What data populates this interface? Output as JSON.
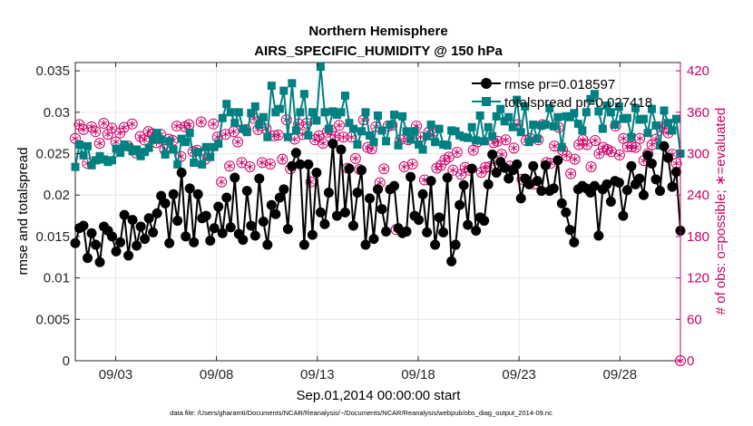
{
  "chart_data": {
    "type": "line",
    "title": "Northern Hemisphere",
    "subtitle": "AIRS_SPECIFIC_HUMIDITY @ 150 hPa",
    "xlabel": "Sep.01,2014 00:00:00 start",
    "ylabel": "rmse and totalspread",
    "y2label": "# of obs: o=possible; ∗=evaluated",
    "footnote": "data file: /Users/gharamti/Documents/NCAR/Reanalysis/~/Documents/NCAR/Reanalysis/webpub/obs_diag_output_2014-09.nc",
    "xlim": [
      1,
      31
    ],
    "ylim": [
      0,
      0.036
    ],
    "y2lim": [
      0,
      432
    ],
    "x_ticks": [
      3,
      8,
      13,
      18,
      23,
      28
    ],
    "x_tick_labels": [
      "09/03",
      "09/08",
      "09/13",
      "09/18",
      "09/23",
      "09/28"
    ],
    "y_ticks": [
      0,
      0.005,
      0.01,
      0.015,
      0.02,
      0.025,
      0.03,
      0.035
    ],
    "y_tick_labels": [
      "0",
      "0.005",
      "0.01",
      "0.015",
      "0.02",
      "0.025",
      "0.03",
      "0.035"
    ],
    "y2_ticks": [
      0,
      60,
      120,
      180,
      240,
      300,
      360,
      420
    ],
    "y2_tick_labels": [
      "0",
      "60",
      "120",
      "180",
      "240",
      "300",
      "360",
      "420"
    ],
    "grid": true,
    "legend_position": "top-right",
    "colors": {
      "rmse": "#000000",
      "totalspread": "#008080",
      "obs": "#cc0066",
      "axis": "#262626",
      "grid": "#e6e6e6"
    },
    "series": [
      {
        "name": "rmse",
        "legend": "rmse pr=0.018597",
        "marker": "circle",
        "values": [
          0.0142,
          0.016,
          0.0163,
          0.0124,
          0.0154,
          0.014,
          0.0119,
          0.0162,
          0.0157,
          0.015,
          0.0132,
          0.0143,
          0.0176,
          0.0127,
          0.017,
          0.0139,
          0.0162,
          0.0147,
          0.0172,
          0.0155,
          0.0178,
          0.0199,
          0.019,
          0.0142,
          0.0201,
          0.0169,
          0.0227,
          0.015,
          0.0208,
          0.0143,
          0.0201,
          0.0172,
          0.0175,
          0.0145,
          0.016,
          0.0186,
          0.0154,
          0.0197,
          0.0161,
          0.0221,
          0.0153,
          0.0146,
          0.0205,
          0.0163,
          0.0151,
          0.022,
          0.0168,
          0.014,
          0.0188,
          0.0177,
          0.0197,
          0.0207,
          0.0159,
          0.0235,
          0.0251,
          0.0237,
          0.014,
          0.0237,
          0.0152,
          0.0227,
          0.0179,
          0.0165,
          0.0203,
          0.0262,
          0.0175,
          0.0255,
          0.0179,
          0.0232,
          0.0163,
          0.0203,
          0.023,
          0.014,
          0.0196,
          0.0147,
          0.0207,
          0.0183,
          0.0156,
          0.0207,
          0.0211,
          0.016,
          0.0154,
          0.0156,
          0.0222,
          0.0175,
          0.017,
          0.0201,
          0.0155,
          0.0217,
          0.014,
          0.0173,
          0.0155,
          0.0221,
          0.012,
          0.014,
          0.0188,
          0.0212,
          0.0164,
          0.0232,
          0.0157,
          0.0173,
          0.0169,
          0.0213,
          0.0249,
          0.0227,
          0.024,
          0.0233,
          0.022,
          0.023,
          0.0237,
          0.0196,
          0.022,
          0.0213,
          0.0235,
          0.0217,
          0.0205,
          0.0236,
          0.0205,
          0.0208,
          0.0242,
          0.019,
          0.0179,
          0.0158,
          0.0143,
          0.0207,
          0.0211,
          0.0208,
          0.0203,
          0.0211,
          0.0151,
          0.0207,
          0.0213,
          0.0192,
          0.0217,
          0.0215,
          0.0175,
          0.0206,
          0.0235,
          0.0213,
          0.022,
          0.02,
          0.0248,
          0.0238,
          0.0219,
          0.0205,
          0.0259,
          0.0245,
          0.021,
          0.0228,
          0.0157
        ]
      },
      {
        "name": "totalspread",
        "legend": "totalspread pr=0.027418",
        "marker": "square",
        "values": [
          0.0234,
          0.0261,
          0.0248,
          0.0259,
          0.0236,
          0.0242,
          0.0247,
          0.0243,
          0.024,
          0.0242,
          0.0256,
          0.0251,
          0.0261,
          0.0258,
          0.0253,
          0.0255,
          0.0247,
          0.0252,
          0.0257,
          0.0267,
          0.0275,
          0.0267,
          0.0249,
          0.0265,
          0.0255,
          0.0237,
          0.0268,
          0.0264,
          0.0275,
          0.0239,
          0.0252,
          0.0237,
          0.0258,
          0.0246,
          0.0258,
          0.0262,
          0.0293,
          0.031,
          0.03,
          0.0287,
          0.03,
          0.028,
          0.0276,
          0.0299,
          0.0307,
          0.0285,
          0.0294,
          0.027,
          0.0332,
          0.03,
          0.0304,
          0.0326,
          0.027,
          0.0335,
          0.0278,
          0.03,
          0.0322,
          0.0272,
          0.03,
          0.029,
          0.0355,
          0.03,
          0.028,
          0.0301,
          0.0297,
          0.03,
          0.032,
          0.0287,
          0.028,
          0.0261,
          0.0277,
          0.03,
          0.0272,
          0.0264,
          0.0296,
          0.0278,
          0.0265,
          0.0285,
          0.0297,
          0.026,
          0.0295,
          0.0277,
          0.0267,
          0.0277,
          0.0261,
          0.0255,
          0.0271,
          0.0285,
          0.0264,
          0.028,
          0.0261,
          0.026,
          0.0278,
          0.0277,
          0.0272,
          0.027,
          0.0269,
          0.0282,
          0.0266,
          0.0296,
          0.0265,
          0.0282,
          0.0271,
          0.0295,
          0.0304,
          0.0289,
          0.0294,
          0.0282,
          0.0315,
          0.0276,
          0.0307,
          0.0264,
          0.0285,
          0.0268,
          0.0284,
          0.0285,
          0.0305,
          0.0283,
          0.0294,
          0.0258,
          0.0295,
          0.0294,
          0.0299,
          0.0286,
          0.0278,
          0.03,
          0.0316,
          0.0322,
          0.0301,
          0.028,
          0.0308,
          0.03,
          0.0285,
          0.0307,
          0.0292,
          0.0293,
          0.027,
          0.0305,
          0.0291,
          0.0292,
          0.0275,
          0.0304,
          0.0284,
          0.026,
          0.0302,
          0.0287,
          0.0278,
          0.0292,
          0.025
        ]
      },
      {
        "name": "obs",
        "legend": "",
        "marker": "circle-star",
        "axis": "right",
        "values": [
          322,
          342,
          335,
          286,
          339,
          332,
          315,
          344,
          328,
          337,
          317,
          330,
          338,
          311,
          343,
          301,
          325,
          320,
          332,
          329,
          316,
          328,
          306,
          321,
          319,
          340,
          296,
          339,
          342,
          303,
          305,
          346,
          292,
          307,
          343,
          324,
          259,
          328,
          282,
          332,
          317,
          287,
          335,
          281,
          351,
          335,
          287,
          336,
          285,
          326,
          327,
          292,
          349,
          278,
          321,
          343,
          328,
          344,
          259,
          320,
          326,
          315,
          331,
          334,
          325,
          341,
          324,
          279,
          324,
          293,
          277,
          349,
          309,
          307,
          339,
          258,
          278,
          340,
          341,
          190,
          320,
          281,
          320,
          285,
          340,
          324,
          262,
          331,
          328,
          279,
          283,
          291,
          295,
          276,
          302,
          270,
          280,
          276,
          305,
          317,
          273,
          280,
          281,
          316,
          318,
          299,
          320,
          282,
          308,
          342,
          263,
          319,
          322,
          256,
          320,
          342,
          287,
          286,
          311,
          338,
          305,
          297,
          271,
          292,
          313,
          320,
          313,
          281,
          319,
          300,
          309,
          306,
          303,
          340,
          298,
          322,
          310,
          310,
          309,
          322,
          290,
          300,
          313,
          321,
          339,
          337,
          330,
          299,
          286,
          0
        ]
      }
    ]
  }
}
